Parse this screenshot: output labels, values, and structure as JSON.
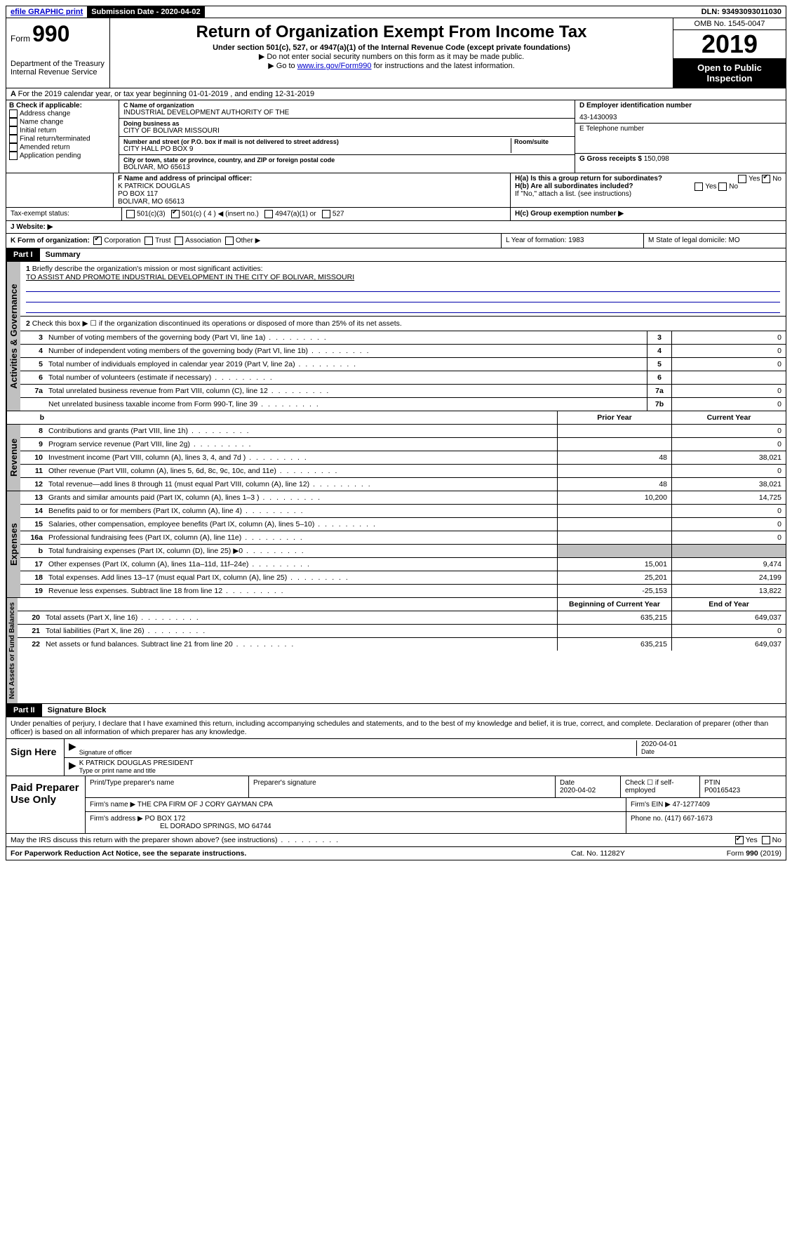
{
  "topbar": {
    "efile": "efile GRAPHIC print",
    "sub_label": "Submission Date - 2020-04-02",
    "dln": "DLN: 93493093011030"
  },
  "header": {
    "form_small": "Form",
    "form_big": "990",
    "dept": "Department of the Treasury Internal Revenue Service",
    "title": "Return of Organization Exempt From Income Tax",
    "sub1": "Under section 501(c), 527, or 4947(a)(1) of the Internal Revenue Code (except private foundations)",
    "sub2": "▶ Do not enter social security numbers on this form as it may be made public.",
    "sub3_pre": "▶ Go to ",
    "sub3_link": "www.irs.gov/Form990",
    "sub3_post": " for instructions and the latest information.",
    "omb": "OMB No. 1545-0047",
    "year": "2019",
    "open": "Open to Public Inspection"
  },
  "lineA": "For the 2019 calendar year, or tax year beginning 01-01-2019    , and ending 12-31-2019",
  "colB": {
    "header": "B Check if applicable:",
    "items": [
      "Address change",
      "Name change",
      "Initial return",
      "Final return/terminated",
      "Amended return",
      "Application pending"
    ]
  },
  "colC": {
    "name_label": "C Name of organization",
    "name": "INDUSTRIAL DEVELOPMENT AUTHORITY OF THE",
    "dba_label": "Doing business as",
    "dba": "CITY OF BOLIVAR MISSOURI",
    "street_label": "Number and street (or P.O. box if mail is not delivered to street address)",
    "room_label": "Room/suite",
    "street": "CITY HALL PO BOX 9",
    "city_label": "City or town, state or province, country, and ZIP or foreign postal code",
    "city": "BOLIVAR, MO  65613"
  },
  "colRight": {
    "d_label": "D Employer identification number",
    "d_val": "43-1430093",
    "e_label": "E Telephone number",
    "g_label": "G Gross receipts $",
    "g_val": "150,098"
  },
  "officer": {
    "f_label": "F  Name and address of principal officer:",
    "name": "K PATRICK DOUGLAS",
    "addr1": "PO BOX 117",
    "addr2": "BOLIVAR, MO  65613"
  },
  "h": {
    "a": "H(a)  Is this a group return for subordinates?",
    "b": "H(b)  Are all subordinates included?",
    "b_note": "If \"No,\" attach a list. (see instructions)",
    "c": "H(c)  Group exemption number ▶",
    "yes": "Yes",
    "no": "No"
  },
  "tax_status": {
    "label": "Tax-exempt status:",
    "opts": [
      "501(c)(3)",
      "501(c) ( 4 ) ◀ (insert no.)",
      "4947(a)(1) or",
      "527"
    ]
  },
  "website": {
    "label": "J   Website: ▶"
  },
  "k": {
    "label": "K Form of organization:",
    "opts": [
      "Corporation",
      "Trust",
      "Association",
      "Other ▶"
    ],
    "l": "L Year of formation: 1983",
    "m": "M State of legal domicile: MO"
  },
  "part1": {
    "bar": "Part I",
    "title": "Summary"
  },
  "summary": {
    "q1": "Briefly describe the organization's mission or most significant activities:",
    "mission": "TO ASSIST AND PROMOTE INDUSTRIAL DEVELOPMENT IN THE CITY OF BOLIVAR, MISSOURI",
    "q2": "Check this box ▶ ☐  if the organization discontinued its operations or disposed of more than 25% of its net assets.",
    "lines_gov": [
      {
        "n": "3",
        "t": "Number of voting members of the governing body (Part VI, line 1a)",
        "lbl": "3",
        "v": "0"
      },
      {
        "n": "4",
        "t": "Number of independent voting members of the governing body (Part VI, line 1b)",
        "lbl": "4",
        "v": "0"
      },
      {
        "n": "5",
        "t": "Total number of individuals employed in calendar year 2019 (Part V, line 2a)",
        "lbl": "5",
        "v": "0"
      },
      {
        "n": "6",
        "t": "Total number of volunteers (estimate if necessary)",
        "lbl": "6",
        "v": ""
      },
      {
        "n": "7a",
        "t": "Total unrelated business revenue from Part VIII, column (C), line 12",
        "lbl": "7a",
        "v": "0"
      },
      {
        "n": "",
        "t": "Net unrelated business taxable income from Form 990-T, line 39",
        "lbl": "7b",
        "v": "0"
      }
    ],
    "hdr_b": "b",
    "hdr_prior": "Prior Year",
    "hdr_curr": "Current Year",
    "rev": [
      {
        "n": "8",
        "t": "Contributions and grants (Part VIII, line 1h)",
        "p": "",
        "c": "0"
      },
      {
        "n": "9",
        "t": "Program service revenue (Part VIII, line 2g)",
        "p": "",
        "c": "0"
      },
      {
        "n": "10",
        "t": "Investment income (Part VIII, column (A), lines 3, 4, and 7d )",
        "p": "48",
        "c": "38,021"
      },
      {
        "n": "11",
        "t": "Other revenue (Part VIII, column (A), lines 5, 6d, 8c, 9c, 10c, and 11e)",
        "p": "",
        "c": "0"
      },
      {
        "n": "12",
        "t": "Total revenue—add lines 8 through 11 (must equal Part VIII, column (A), line 12)",
        "p": "48",
        "c": "38,021"
      }
    ],
    "exp": [
      {
        "n": "13",
        "t": "Grants and similar amounts paid (Part IX, column (A), lines 1–3 )",
        "p": "10,200",
        "c": "14,725"
      },
      {
        "n": "14",
        "t": "Benefits paid to or for members (Part IX, column (A), line 4)",
        "p": "",
        "c": "0"
      },
      {
        "n": "15",
        "t": "Salaries, other compensation, employee benefits (Part IX, column (A), lines 5–10)",
        "p": "",
        "c": "0"
      },
      {
        "n": "16a",
        "t": "Professional fundraising fees (Part IX, column (A), line 11e)",
        "p": "",
        "c": "0"
      },
      {
        "n": "b",
        "t": "Total fundraising expenses (Part IX, column (D), line 25) ▶0",
        "p": "GREY",
        "c": "GREY"
      },
      {
        "n": "17",
        "t": "Other expenses (Part IX, column (A), lines 11a–11d, 11f–24e)",
        "p": "15,001",
        "c": "9,474"
      },
      {
        "n": "18",
        "t": "Total expenses. Add lines 13–17 (must equal Part IX, column (A), line 25)",
        "p": "25,201",
        "c": "24,199"
      },
      {
        "n": "19",
        "t": "Revenue less expenses. Subtract line 18 from line 12",
        "p": "-25,153",
        "c": "13,822"
      }
    ],
    "hdr_beg": "Beginning of Current Year",
    "hdr_end": "End of Year",
    "net": [
      {
        "n": "20",
        "t": "Total assets (Part X, line 16)",
        "p": "635,215",
        "c": "649,037"
      },
      {
        "n": "21",
        "t": "Total liabilities (Part X, line 26)",
        "p": "",
        "c": "0"
      },
      {
        "n": "22",
        "t": "Net assets or fund balances. Subtract line 21 from line 20",
        "p": "635,215",
        "c": "649,037"
      }
    ]
  },
  "vtabs": {
    "gov": "Activities & Governance",
    "rev": "Revenue",
    "exp": "Expenses",
    "net": "Net Assets or Fund Balances"
  },
  "part2": {
    "bar": "Part II",
    "title": "Signature Block"
  },
  "perjury": "Under penalties of perjury, I declare that I have examined this return, including accompanying schedules and statements, and to the best of my knowledge and belief, it is true, correct, and complete. Declaration of preparer (other than officer) is based on all information of which preparer has any knowledge.",
  "sign": {
    "left": "Sign Here",
    "sig_label": "Signature of officer",
    "date": "2020-04-01",
    "date_label": "Date",
    "name": "K PATRICK DOUGLAS PRESIDENT",
    "name_label": "Type or print name and title"
  },
  "paid": {
    "left": "Paid Preparer Use Only",
    "h1": "Print/Type preparer's name",
    "h2": "Preparer's signature",
    "h3": "Date",
    "h3v": "2020-04-02",
    "h4a": "Check ☐ if self-employed",
    "h5": "PTIN",
    "h5v": "P00165423",
    "firm_label": "Firm's name    ▶",
    "firm": "THE CPA FIRM OF J CORY GAYMAN CPA",
    "ein_label": "Firm's EIN ▶",
    "ein": "47-1277409",
    "addr_label": "Firm's address ▶",
    "addr1": "PO BOX 172",
    "addr2": "EL DORADO SPRINGS, MO  64744",
    "phone_label": "Phone no.",
    "phone": "(417) 667-1673"
  },
  "discuss": "May the IRS discuss this return with the preparer shown above? (see instructions)",
  "footer": {
    "left": "For Paperwork Reduction Act Notice, see the separate instructions.",
    "mid": "Cat. No. 11282Y",
    "right": "Form 990 (2019)"
  }
}
